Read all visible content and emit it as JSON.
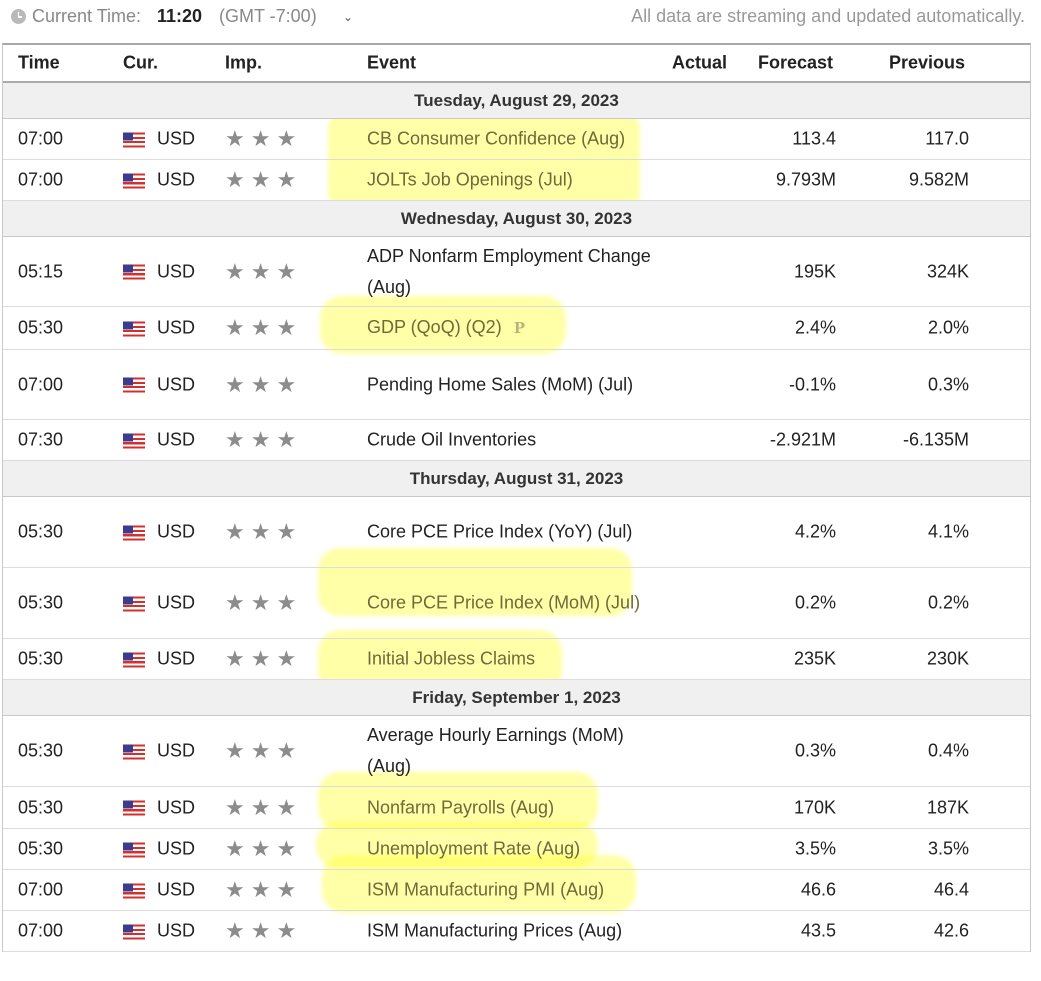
{
  "topbar": {
    "current_time_label": "Current Time:",
    "current_time": "11:20",
    "timezone": "(GMT -7:00)",
    "dropdown_caret": "chevron-down-icon",
    "streaming_note": "All data are streaming and updated automatically."
  },
  "columns": {
    "time": "Time",
    "currency": "Cur.",
    "importance": "Imp.",
    "event": "Event",
    "actual": "Actual",
    "forecast": "Forecast",
    "previous": "Previous"
  },
  "star_glyph": "★★★",
  "highlight_color": "#ffff3c",
  "days": [
    {
      "title": "Tuesday, August 29, 2023",
      "events": [
        {
          "time": "07:00",
          "currency": "USD",
          "event": "CB Consumer Confidence (Aug)",
          "actual": "",
          "forecast": "113.4",
          "previous": "117.0"
        },
        {
          "time": "07:00",
          "currency": "USD",
          "event": "JOLTs Job Openings (Jul)",
          "actual": "",
          "forecast": "9.793M",
          "previous": "9.582M"
        }
      ]
    },
    {
      "title": "Wednesday, August 30, 2023",
      "events": [
        {
          "time": "05:15",
          "currency": "USD",
          "event": "ADP Nonfarm Employment Change (Aug)",
          "actual": "",
          "forecast": "195K",
          "previous": "324K"
        },
        {
          "time": "05:30",
          "currency": "USD",
          "event": "GDP (QoQ) (Q2)",
          "prelim": "P",
          "actual": "",
          "forecast": "2.4%",
          "previous": "2.0%"
        },
        {
          "time": "07:00",
          "currency": "USD",
          "event": "Pending Home Sales (MoM) (Jul)",
          "actual": "",
          "forecast": "-0.1%",
          "previous": "0.3%"
        },
        {
          "time": "07:30",
          "currency": "USD",
          "event": "Crude Oil Inventories",
          "actual": "",
          "forecast": "-2.921M",
          "previous": "-6.135M"
        }
      ]
    },
    {
      "title": "Thursday, August 31, 2023",
      "events": [
        {
          "time": "05:30",
          "currency": "USD",
          "event": "Core PCE Price Index (YoY) (Jul)",
          "actual": "",
          "forecast": "4.2%",
          "previous": "4.1%"
        },
        {
          "time": "05:30",
          "currency": "USD",
          "event": "Core PCE Price Index (MoM) (Jul)",
          "actual": "",
          "forecast": "0.2%",
          "previous": "0.2%"
        },
        {
          "time": "05:30",
          "currency": "USD",
          "event": "Initial Jobless Claims",
          "actual": "",
          "forecast": "235K",
          "previous": "230K"
        }
      ]
    },
    {
      "title": "Friday, September 1, 2023",
      "events": [
        {
          "time": "05:30",
          "currency": "USD",
          "event": "Average Hourly Earnings (MoM) (Aug)",
          "actual": "",
          "forecast": "0.3%",
          "previous": "0.4%"
        },
        {
          "time": "05:30",
          "currency": "USD",
          "event": "Nonfarm Payrolls (Aug)",
          "actual": "",
          "forecast": "170K",
          "previous": "187K"
        },
        {
          "time": "05:30",
          "currency": "USD",
          "event": "Unemployment Rate (Aug)",
          "actual": "",
          "forecast": "3.5%",
          "previous": "3.5%"
        },
        {
          "time": "07:00",
          "currency": "USD",
          "event": "ISM Manufacturing PMI (Aug)",
          "actual": "",
          "forecast": "46.6",
          "previous": "46.4"
        },
        {
          "time": "07:00",
          "currency": "USD",
          "event": "ISM Manufacturing Prices (Aug)",
          "actual": "",
          "forecast": "43.5",
          "previous": "42.6"
        }
      ]
    }
  ]
}
